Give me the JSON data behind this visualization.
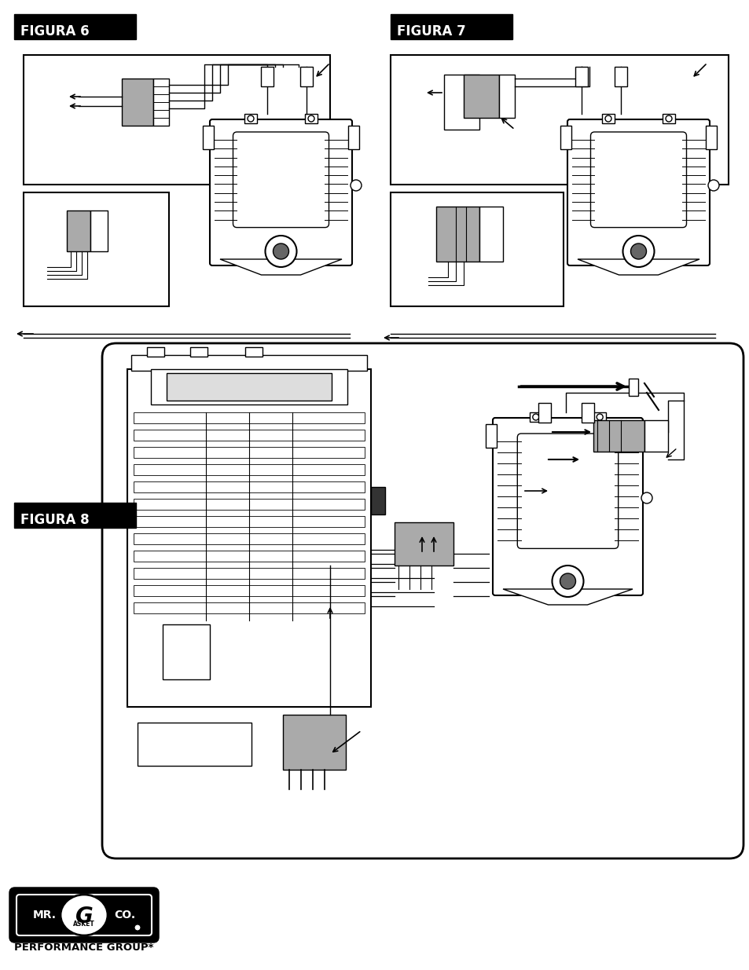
{
  "background_color": "#ffffff",
  "fig_width": 9.54,
  "fig_height": 12.35,
  "title_fig6": "FIGURA 6",
  "title_fig7": "FIGURA 7",
  "title_fig8": "FIGURA 8",
  "label_performance": "PERFORMANCE GROUP*"
}
